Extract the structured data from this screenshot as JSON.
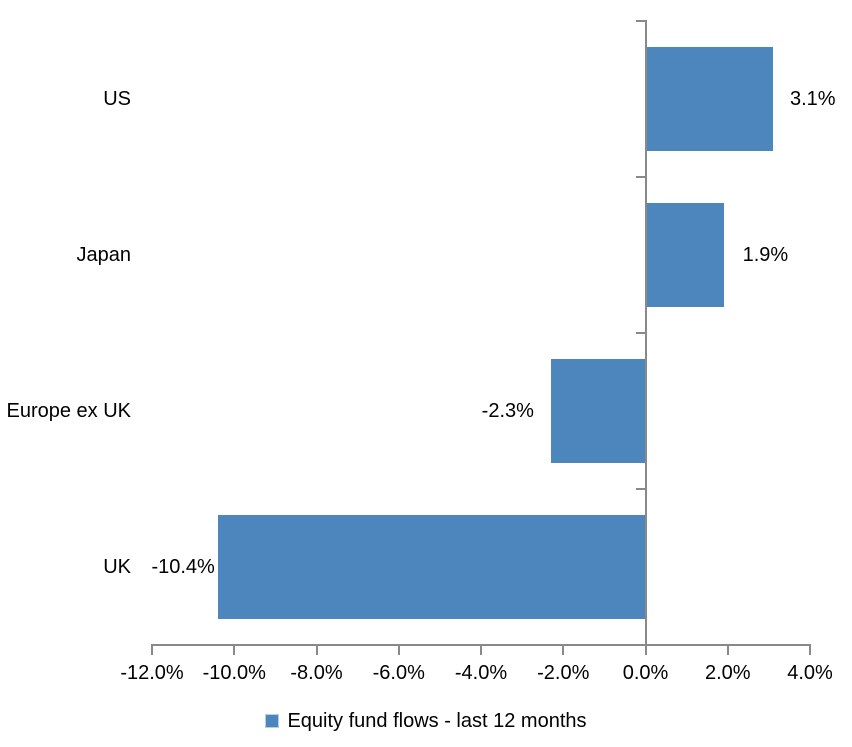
{
  "chart_data": {
    "type": "bar",
    "orientation": "horizontal",
    "title": "",
    "categories": [
      "US",
      "Japan",
      "Europe ex UK",
      "UK"
    ],
    "series": [
      {
        "name": "Equity fund flows - last 12 months",
        "values": [
          3.1,
          1.9,
          -2.3,
          -10.4
        ]
      }
    ],
    "data_labels": [
      "3.1%",
      "1.9%",
      "-2.3%",
      "-10.4%"
    ],
    "x_ticks": [
      -12,
      -10,
      -8,
      -6,
      -4,
      -2,
      0,
      2,
      4
    ],
    "x_tick_labels": [
      "-12.0%",
      "-10.0%",
      "-8.0%",
      "-6.0%",
      "-4.0%",
      "-2.0%",
      "0.0%",
      "2.0%",
      "4.0%"
    ],
    "xlim": [
      -12,
      4
    ],
    "grid": false,
    "legend_position": "bottom",
    "colors": {
      "bar": "#4D86BC",
      "axis": "#898989",
      "text": "#000000",
      "background": "#FFFFFF",
      "legend_swatch_border": "#B9CDE5"
    }
  }
}
